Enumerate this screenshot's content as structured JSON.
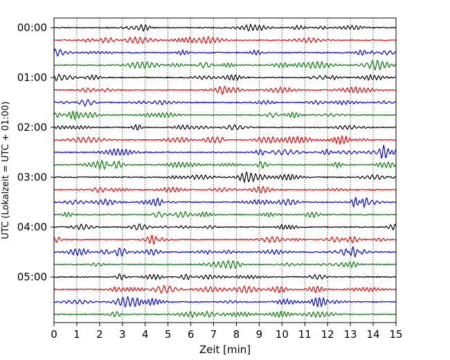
{
  "chart_data": {
    "type": "line",
    "title": "",
    "xlabel": "Zeit  [min]",
    "ylabel": "UTC (Lokalzeit = UTC + 01:00)",
    "xlim": [
      0,
      15
    ],
    "x_ticks": [
      "0",
      "1",
      "2",
      "3",
      "4",
      "5",
      "6",
      "7",
      "8",
      "9",
      "10",
      "11",
      "12",
      "13",
      "14",
      "15"
    ],
    "y_ticks": [
      "00:00",
      "01:00",
      "02:00",
      "03:00",
      "04:00",
      "05:00"
    ],
    "trace_interval_minutes": 15,
    "trace_count": 24,
    "trace_colors": [
      "#000000",
      "#ff0000",
      "#0000ff",
      "#008000"
    ],
    "vertical_grid": "dotted",
    "legend": "none"
  }
}
